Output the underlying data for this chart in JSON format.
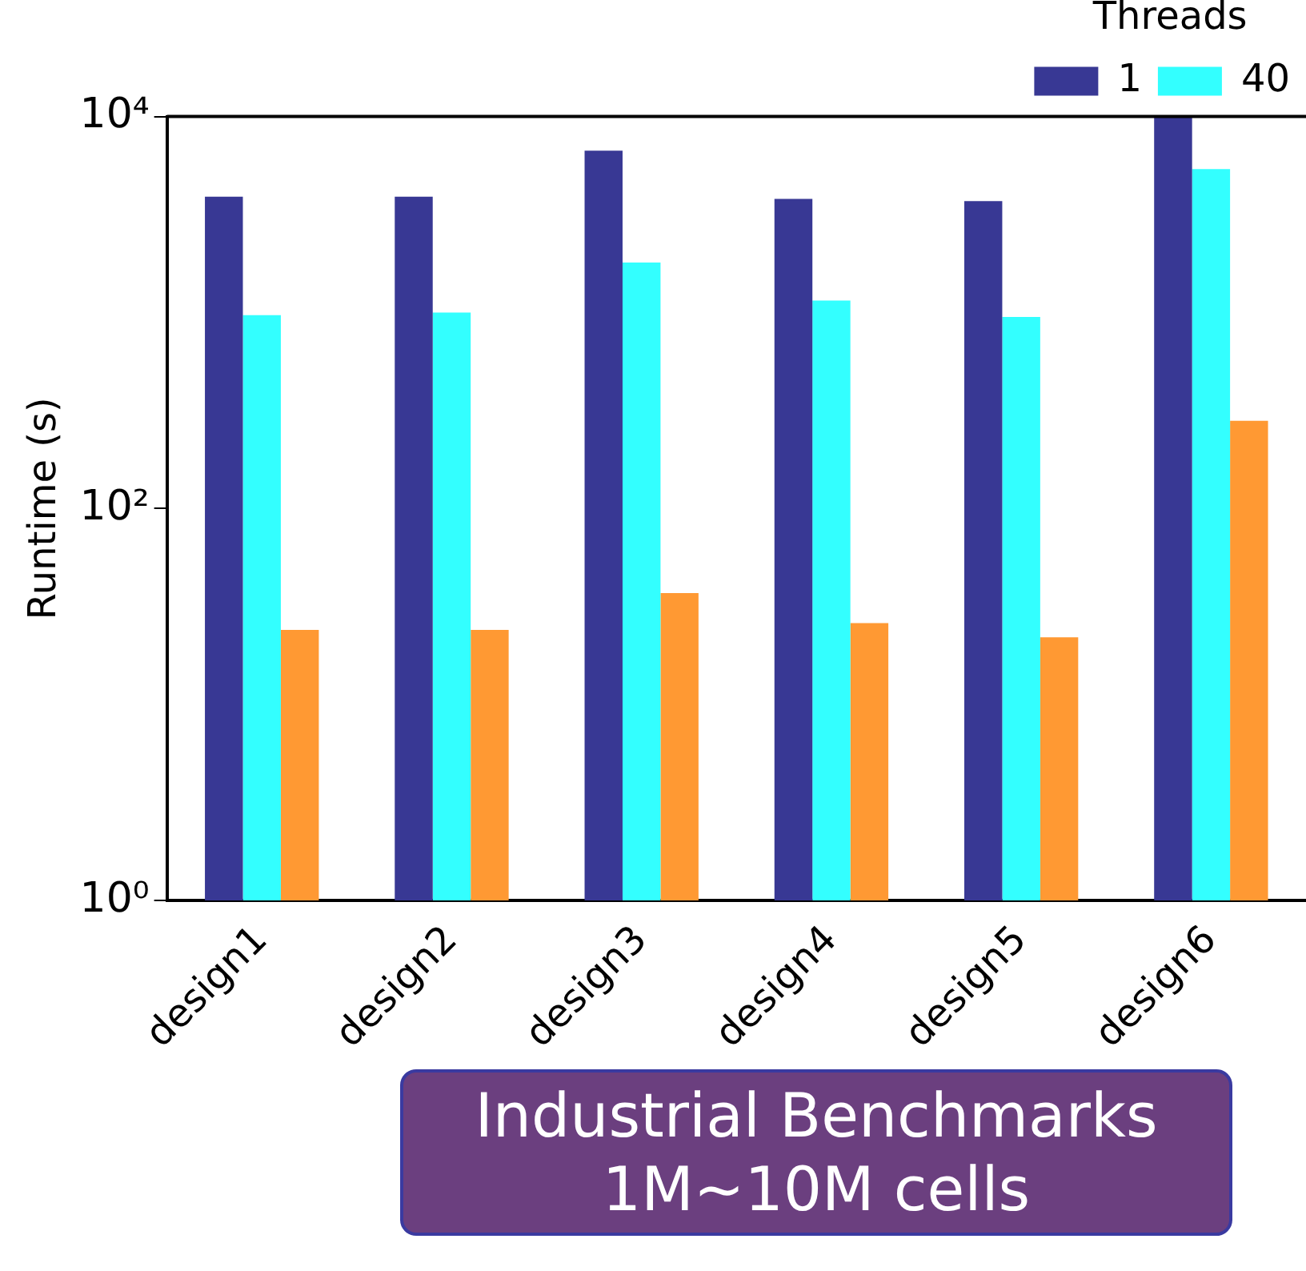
{
  "chart_data": {
    "type": "bar",
    "ylabel": "Runtime (s)",
    "legend_title": "Threads",
    "categories": [
      "design1",
      "design2",
      "design3",
      "design4",
      "design5",
      "design6"
    ],
    "series": [
      {
        "name": "1",
        "color": "#383894",
        "values": [
          3900,
          3900,
          6700,
          3800,
          3700,
          10000
        ]
      },
      {
        "name": "40",
        "color": "#33ffff",
        "values": [
          970,
          1000,
          1800,
          1150,
          950,
          5400
        ]
      },
      {
        "color": "#ff9933",
        "values": [
          24,
          24,
          37,
          26,
          22,
          280
        ]
      }
    ],
    "log": true,
    "ylim": [
      1,
      10000
    ],
    "yticks": [
      {
        "value": 1,
        "label": "10⁰"
      },
      {
        "value": 100,
        "label": "10²"
      },
      {
        "value": 10000,
        "label": "10⁴"
      }
    ],
    "grid": false,
    "legend": "top",
    "annotations": [
      "Industrial Benchmarks 1M~10M cells"
    ]
  }
}
